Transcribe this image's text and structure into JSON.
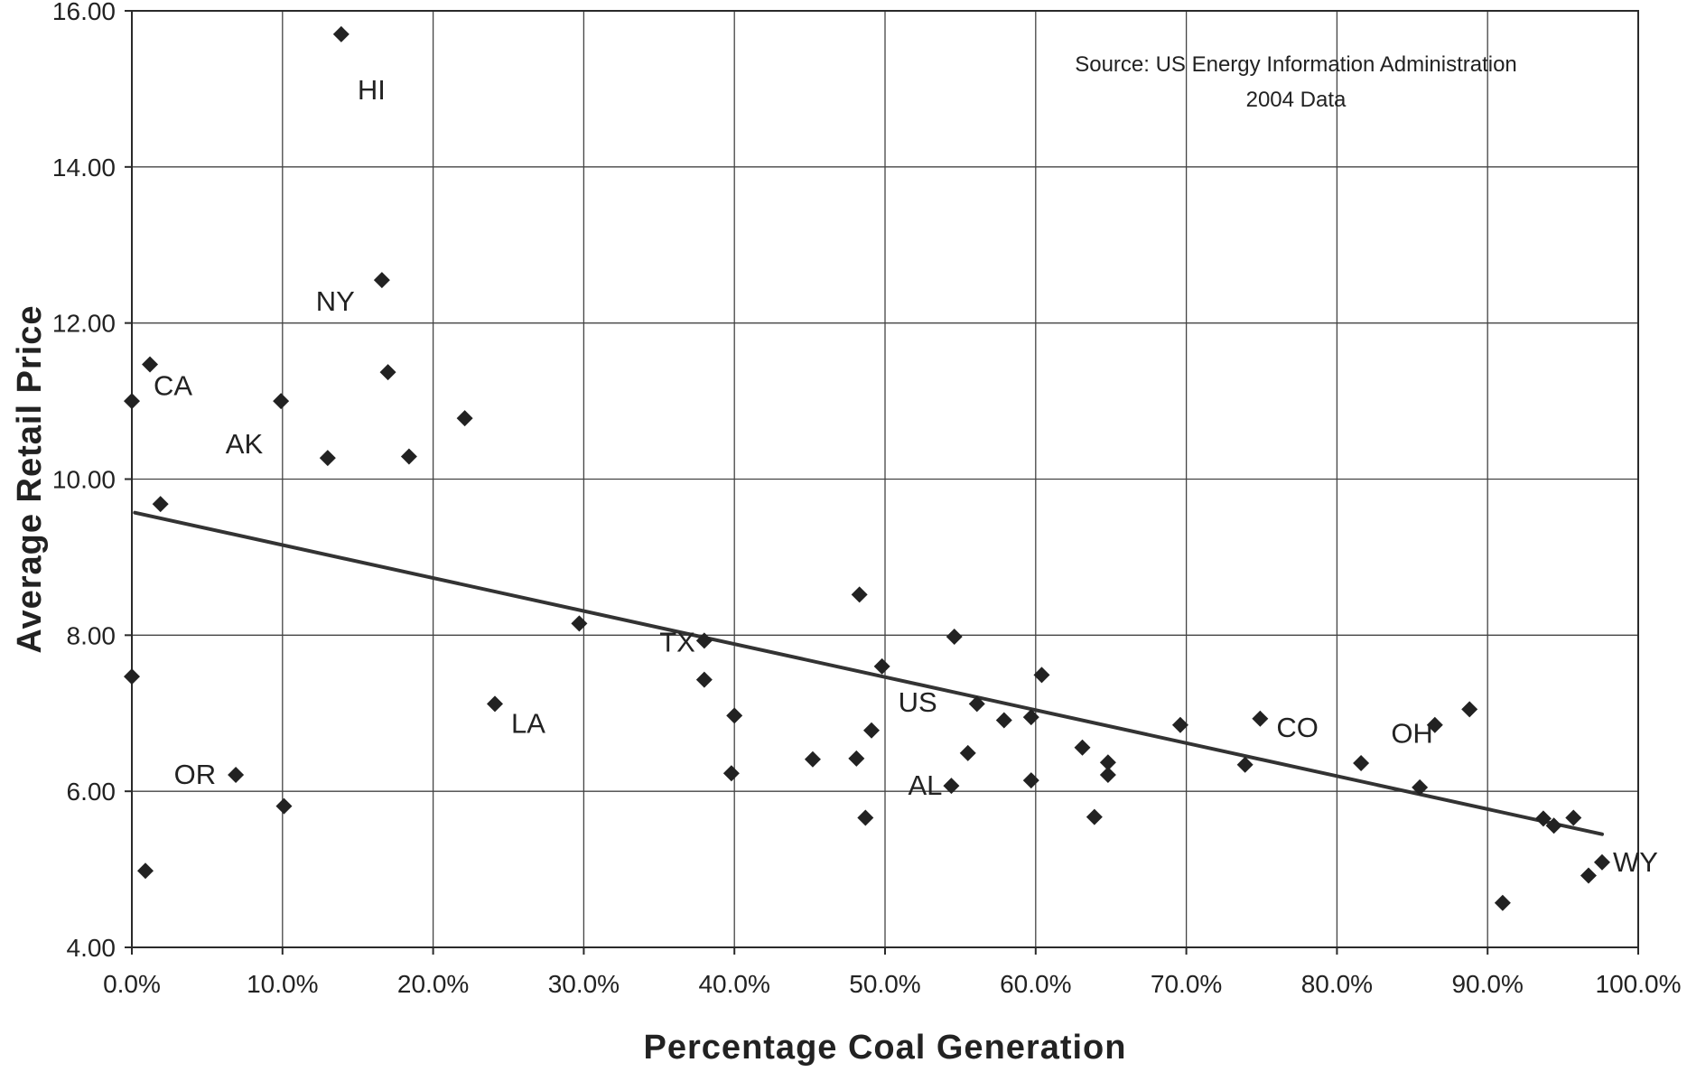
{
  "chart_data": {
    "type": "scatter",
    "title": "",
    "xlabel": "Percentage Coal Generation",
    "ylabel": "Average Retail Price",
    "xlim": [
      0,
      1
    ],
    "ylim": [
      4,
      16
    ],
    "x_ticks": [
      0,
      0.1,
      0.2,
      0.3,
      0.4,
      0.5,
      0.6,
      0.7,
      0.8,
      0.9,
      1.0
    ],
    "x_tick_labels": [
      "0.0%",
      "10.0%",
      "20.0%",
      "30.0%",
      "40.0%",
      "50.0%",
      "60.0%",
      "70.0%",
      "80.0%",
      "90.0%",
      "100.0%"
    ],
    "y_ticks": [
      4,
      6,
      8,
      10,
      12,
      14,
      16
    ],
    "y_tick_labels": [
      "4.00",
      "6.00",
      "8.00",
      "10.00",
      "12.00",
      "14.00",
      "16.00"
    ],
    "grid": true,
    "annotations": [
      "Source: US Energy Information Administration",
      "2004 Data"
    ],
    "trendline": {
      "type": "linear",
      "x": [
        0.002,
        0.976
      ],
      "y": [
        9.57,
        5.45
      ]
    },
    "marker_color": "#222222",
    "points": [
      {
        "x": 0.139,
        "y": 15.7,
        "label": "HI"
      },
      {
        "x": 0.166,
        "y": 12.55,
        "label": "NY"
      },
      {
        "x": 0.012,
        "y": 11.47,
        "label": "CA"
      },
      {
        "x": 0.0,
        "y": 11.0,
        "label": ""
      },
      {
        "x": 0.099,
        "y": 11.0,
        "label": "AK"
      },
      {
        "x": 0.17,
        "y": 11.37,
        "label": ""
      },
      {
        "x": 0.221,
        "y": 10.78,
        "label": ""
      },
      {
        "x": 0.13,
        "y": 10.27,
        "label": ""
      },
      {
        "x": 0.184,
        "y": 10.29,
        "label": ""
      },
      {
        "x": 0.019,
        "y": 9.68,
        "label": ""
      },
      {
        "x": 0.0,
        "y": 7.47,
        "label": ""
      },
      {
        "x": 0.069,
        "y": 6.21,
        "label": "OR"
      },
      {
        "x": 0.101,
        "y": 5.81,
        "label": ""
      },
      {
        "x": 0.009,
        "y": 4.98,
        "label": ""
      },
      {
        "x": 0.241,
        "y": 7.12,
        "label": "LA"
      },
      {
        "x": 0.297,
        "y": 8.15,
        "label": ""
      },
      {
        "x": 0.38,
        "y": 7.93,
        "label": "TX"
      },
      {
        "x": 0.38,
        "y": 7.43,
        "label": ""
      },
      {
        "x": 0.4,
        "y": 6.97,
        "label": ""
      },
      {
        "x": 0.398,
        "y": 6.23,
        "label": ""
      },
      {
        "x": 0.452,
        "y": 6.41,
        "label": ""
      },
      {
        "x": 0.483,
        "y": 8.52,
        "label": ""
      },
      {
        "x": 0.498,
        "y": 7.6,
        "label": "US"
      },
      {
        "x": 0.491,
        "y": 6.78,
        "label": ""
      },
      {
        "x": 0.481,
        "y": 6.42,
        "label": ""
      },
      {
        "x": 0.487,
        "y": 5.66,
        "label": ""
      },
      {
        "x": 0.546,
        "y": 7.98,
        "label": ""
      },
      {
        "x": 0.561,
        "y": 7.12,
        "label": ""
      },
      {
        "x": 0.555,
        "y": 6.49,
        "label": ""
      },
      {
        "x": 0.544,
        "y": 6.07,
        "label": "AL"
      },
      {
        "x": 0.579,
        "y": 6.91,
        "label": ""
      },
      {
        "x": 0.597,
        "y": 6.95,
        "label": ""
      },
      {
        "x": 0.604,
        "y": 7.49,
        "label": ""
      },
      {
        "x": 0.597,
        "y": 6.14,
        "label": ""
      },
      {
        "x": 0.631,
        "y": 6.56,
        "label": ""
      },
      {
        "x": 0.648,
        "y": 6.37,
        "label": ""
      },
      {
        "x": 0.648,
        "y": 6.21,
        "label": ""
      },
      {
        "x": 0.639,
        "y": 5.67,
        "label": ""
      },
      {
        "x": 0.696,
        "y": 6.85,
        "label": ""
      },
      {
        "x": 0.749,
        "y": 6.93,
        "label": "CO"
      },
      {
        "x": 0.739,
        "y": 6.34,
        "label": ""
      },
      {
        "x": 0.816,
        "y": 6.36,
        "label": ""
      },
      {
        "x": 0.865,
        "y": 6.85,
        "label": "OH"
      },
      {
        "x": 0.855,
        "y": 6.05,
        "label": ""
      },
      {
        "x": 0.888,
        "y": 7.05,
        "label": ""
      },
      {
        "x": 0.91,
        "y": 4.57,
        "label": ""
      },
      {
        "x": 0.937,
        "y": 5.65,
        "label": ""
      },
      {
        "x": 0.944,
        "y": 5.56,
        "label": ""
      },
      {
        "x": 0.957,
        "y": 5.66,
        "label": ""
      },
      {
        "x": 0.967,
        "y": 4.92,
        "label": ""
      },
      {
        "x": 0.976,
        "y": 5.09,
        "label": "WY"
      }
    ]
  }
}
